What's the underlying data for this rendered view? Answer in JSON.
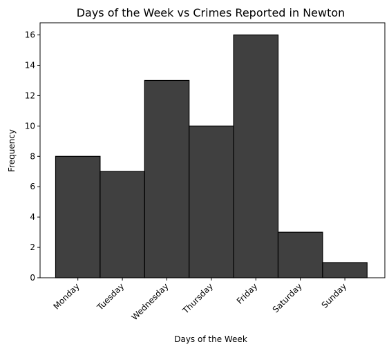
{
  "chart_data": {
    "type": "bar",
    "title": "Days of the Week vs Crimes Reported in Newton",
    "xlabel": "Days of the Week",
    "ylabel": "Frequency",
    "categories": [
      "Monday",
      "Tuesday",
      "Wednesday",
      "Thursday",
      "Friday",
      "Saturday",
      "Sunday"
    ],
    "values": [
      8,
      7,
      13,
      10,
      16,
      3,
      1
    ],
    "ylim": [
      0,
      16.8
    ],
    "yticks": [
      0,
      2,
      4,
      6,
      8,
      10,
      12,
      14,
      16
    ],
    "bar_color": "#404040",
    "edge_color": "#000000",
    "grid": false,
    "legend": "none"
  }
}
